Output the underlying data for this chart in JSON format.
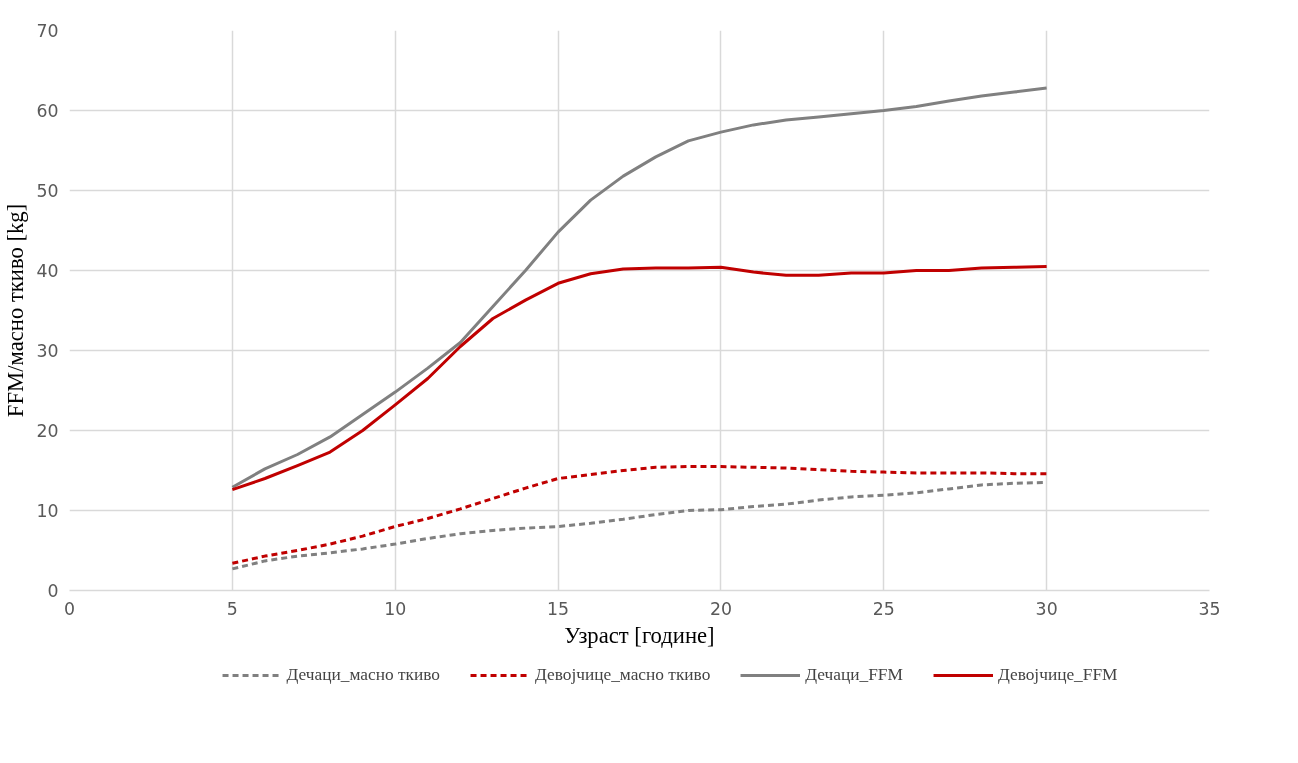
{
  "chart_data": {
    "type": "line",
    "xlabel": "Узраст [године]",
    "ylabel": "FFM/масно ткиво [kg]",
    "x": [
      5,
      6,
      7,
      8,
      9,
      10,
      11,
      12,
      13,
      14,
      15,
      16,
      17,
      18,
      19,
      20,
      21,
      22,
      23,
      24,
      25,
      26,
      27,
      28,
      29,
      30
    ],
    "xlim": [
      0,
      35
    ],
    "xticks": [
      0,
      5,
      10,
      15,
      20,
      25,
      30,
      35
    ],
    "ylim": [
      0,
      70
    ],
    "yticks": [
      0,
      10,
      20,
      30,
      40,
      50,
      60,
      70
    ],
    "grid": true,
    "legend": "bottom",
    "marker": "none",
    "series": [
      {
        "name": "Дечаци_масно ткиво",
        "color": "#808080",
        "line_style": "dashed",
        "values": [
          2.7,
          3.7,
          4.3,
          4.7,
          5.2,
          5.8,
          6.5,
          7.1,
          7.5,
          7.8,
          8,
          8.4,
          8.9,
          9.5,
          10,
          10.1,
          10.5,
          10.8,
          11.3,
          11.7,
          11.9,
          12.2,
          12.7,
          13.2,
          13.4,
          13.5
        ]
      },
      {
        "name": "Девојчице_масно ткиво",
        "color": "#c00000",
        "line_style": "dashed",
        "values": [
          3.4,
          4.3,
          5,
          5.8,
          6.8,
          8,
          9,
          10.2,
          11.5,
          12.8,
          14,
          14.5,
          15,
          15.4,
          15.5,
          15.5,
          15.4,
          15.3,
          15.1,
          14.9,
          14.8,
          14.7,
          14.7,
          14.7,
          14.6,
          14.6
        ]
      },
      {
        "name": "Дечаци_FFM",
        "color": "#808080",
        "line_style": "solid",
        "values": [
          12.9,
          15.2,
          17,
          19.2,
          22,
          24.8,
          27.8,
          31,
          35.5,
          40,
          44.8,
          48.8,
          51.8,
          54.2,
          56.2,
          57.3,
          58.2,
          58.8,
          59.2,
          59.6,
          60,
          60.5,
          61.2,
          61.8,
          62.3,
          62.8
        ]
      },
      {
        "name": "Девојчице_FFM",
        "color": "#c00000",
        "line_style": "solid",
        "values": [
          12.6,
          14,
          15.6,
          17.3,
          20,
          23.2,
          26.5,
          30.5,
          34,
          36.3,
          38.4,
          39.6,
          40.2,
          40.3,
          40.3,
          40.4,
          39.8,
          39.4,
          39.4,
          39.7,
          39.7,
          40,
          40,
          40.3,
          40.4,
          40.5
        ]
      }
    ]
  }
}
